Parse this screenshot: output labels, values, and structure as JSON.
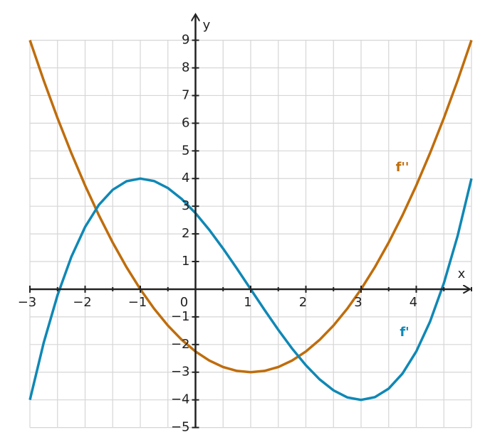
{
  "chart_data": {
    "type": "line",
    "x": [
      -3,
      -2.75,
      -2.5,
      -2.25,
      -2,
      -1.75,
      -1.5,
      -1.25,
      -1,
      -0.75,
      -0.5,
      -0.25,
      0,
      0.25,
      0.5,
      0.75,
      1,
      1.25,
      1.5,
      1.75,
      2,
      2.25,
      2.5,
      2.75,
      3,
      3.25,
      3.5,
      3.75,
      4,
      4.25,
      4.5,
      4.75,
      5
    ],
    "series": [
      {
        "name": "f''",
        "color": "#bf6d0c",
        "values": [
          9,
          7.546875,
          6.1875,
          4.921875,
          3.75,
          2.671875,
          1.6875,
          0.796875,
          0,
          -0.703125,
          -1.3125,
          -1.828125,
          -2.25,
          -2.578125,
          -2.8125,
          -2.953125,
          -3,
          -2.953125,
          -2.8125,
          -2.578125,
          -2.25,
          -1.828125,
          -1.3125,
          -0.703125,
          0,
          0.796875,
          1.6875,
          2.671875,
          3.75,
          4.921875,
          6.1875,
          7.546875,
          9
        ]
      },
      {
        "name": "f'",
        "color": "#0f88b5",
        "values": [
          -4,
          -1.93359375,
          -0.21875,
          1.16796875,
          2.25,
          3.05078125,
          3.59375,
          3.90234375,
          4,
          3.91015625,
          3.65625,
          3.26171875,
          2.75,
          2.14453125,
          1.46875,
          0.74609375,
          0,
          -0.74609375,
          -1.46875,
          -2.14453125,
          -2.75,
          -3.26171875,
          -3.65625,
          -3.91015625,
          -4,
          -3.90234375,
          -3.59375,
          -3.05078125,
          -2.25,
          -1.16796875,
          0.21875,
          1.93359375,
          4
        ]
      }
    ],
    "x_label": "x",
    "y_label": "y",
    "xlim": [
      -3,
      5
    ],
    "ylim": [
      -5,
      9
    ],
    "xticks": [
      {
        "value": -3,
        "label": "−3"
      },
      {
        "value": -2,
        "label": "−2"
      },
      {
        "value": -1,
        "label": "−1"
      },
      0,
      1,
      2,
      3,
      4
    ],
    "yticks": [
      {
        "value": -5,
        "label": "−5"
      },
      {
        "value": -4,
        "label": "−4"
      },
      {
        "value": -3,
        "label": "−3"
      },
      {
        "value": -2,
        "label": "−2"
      },
      {
        "value": -1,
        "label": "−1"
      },
      1,
      2,
      3,
      4,
      5,
      6,
      7,
      8,
      9
    ],
    "grid": true
  }
}
